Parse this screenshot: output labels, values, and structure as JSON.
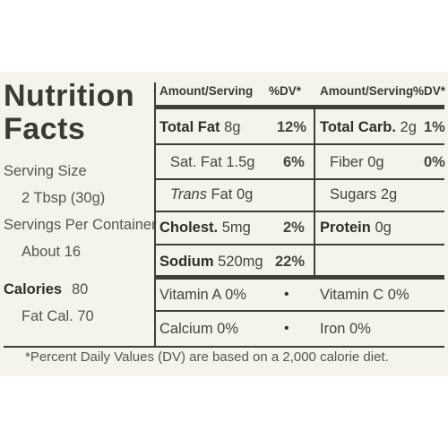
{
  "title": {
    "line1": "Nutrition",
    "line2": "Facts"
  },
  "serving": {
    "size_label": "Serving Size",
    "size_value": "2 Tbsp (30g)",
    "per_container_label": "Servings Per Container",
    "per_container_value": "About 16",
    "calories_label": "Calories",
    "calories_value": "80",
    "fat_cal": "Fat Cal. 70"
  },
  "headers": {
    "left_amount": "Amount/Serving",
    "left_dv": "%DV*",
    "right_amount": "Amount/Serving",
    "right_dv": "%DV*"
  },
  "nutrients_left": {
    "total_fat": {
      "name": "Total Fat",
      "amount": "8g",
      "dv": "12%"
    },
    "sat_fat": {
      "name": "Sat. Fat",
      "amount": "1.5g",
      "dv": "6%"
    },
    "trans_fat": {
      "name": "Trans",
      "suffix": "Fat 0g"
    },
    "cholest": {
      "name": "Cholest.",
      "amount": "5mg",
      "dv": "2%"
    },
    "sodium": {
      "name": "Sodium",
      "amount": "520mg",
      "dv": "22%"
    }
  },
  "nutrients_right": {
    "total_carb": {
      "name": "Total Carb.",
      "amount": "2g",
      "dv": "1%"
    },
    "fiber": {
      "name": "Fiber",
      "amount": "0g",
      "dv": "0%"
    },
    "sugars": {
      "name": "Sugars",
      "amount": "2g"
    },
    "protein": {
      "name": "Protein",
      "amount": "0g"
    }
  },
  "vitamins": {
    "vitamin_a": "Vitamin A 0%",
    "vitamin_c": "Vitamin C 0%",
    "calcium": "Calcium 0%",
    "iron": "Iron 0%",
    "separator": "•"
  },
  "footnote": "*Percent Daily Values (DV) are based on a 2,000 calorie diet.",
  "colors": {
    "panel": "#f5f4ea",
    "ink": "#3a3a36"
  }
}
